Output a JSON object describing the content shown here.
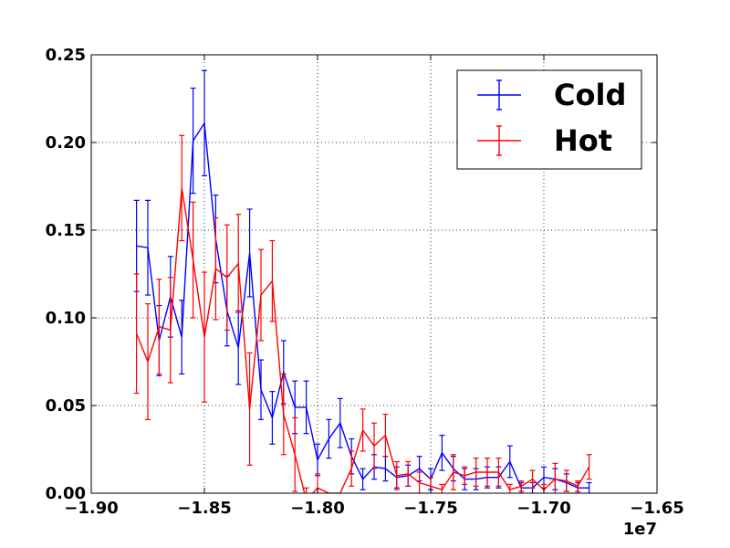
{
  "chart_data": {
    "type": "line",
    "title": "",
    "xlabel": "",
    "ylabel": "",
    "x_offset_label": "1e7",
    "xlim": [
      -1.9,
      -1.65
    ],
    "ylim": [
      0.0,
      0.25
    ],
    "x_ticks": [
      -1.9,
      -1.85,
      -1.8,
      -1.75,
      -1.7,
      -1.65
    ],
    "x_tick_labels": [
      "−1.90",
      "−1.85",
      "−1.80",
      "−1.75",
      "−1.70",
      "−1.65"
    ],
    "y_ticks": [
      0.0,
      0.05,
      0.1,
      0.15,
      0.2,
      0.25
    ],
    "y_tick_labels": [
      "0.00",
      "0.05",
      "0.10",
      "0.15",
      "0.20",
      "0.25"
    ],
    "grid": true,
    "legend_position": "top-right",
    "series": [
      {
        "name": "Cold",
        "color": "#0000ff",
        "x": [
          -1.88,
          -1.875,
          -1.87,
          -1.865,
          -1.86,
          -1.855,
          -1.85,
          -1.845,
          -1.84,
          -1.835,
          -1.83,
          -1.825,
          -1.82,
          -1.815,
          -1.81,
          -1.805,
          -1.8,
          -1.795,
          -1.79,
          -1.785,
          -1.78,
          -1.775,
          -1.77,
          -1.765,
          -1.76,
          -1.755,
          -1.75,
          -1.745,
          -1.74,
          -1.735,
          -1.73,
          -1.725,
          -1.72,
          -1.715,
          -1.71,
          -1.705,
          -1.7,
          -1.695,
          -1.69,
          -1.685,
          -1.68
        ],
        "y": [
          0.141,
          0.14,
          0.087,
          0.112,
          0.089,
          0.201,
          0.211,
          0.145,
          0.104,
          0.083,
          0.137,
          0.059,
          0.043,
          0.069,
          0.049,
          0.049,
          0.019,
          0.031,
          0.04,
          0.021,
          0.008,
          0.015,
          0.014,
          0.009,
          0.01,
          0.014,
          0.008,
          0.023,
          0.014,
          0.008,
          0.008,
          0.009,
          0.009,
          0.018,
          0.003,
          0.003,
          0.009,
          0.008,
          0.006,
          0.003,
          0.003
        ],
        "err": [
          0.026,
          0.027,
          0.02,
          0.023,
          0.021,
          0.03,
          0.03,
          0.025,
          0.02,
          0.021,
          0.025,
          0.017,
          0.015,
          0.018,
          0.015,
          0.015,
          0.009,
          0.011,
          0.014,
          0.01,
          0.006,
          0.007,
          0.007,
          0.006,
          0.006,
          0.007,
          0.006,
          0.01,
          0.007,
          0.006,
          0.006,
          0.006,
          0.006,
          0.009,
          0.003,
          0.003,
          0.006,
          0.006,
          0.005,
          0.003,
          0.003
        ]
      },
      {
        "name": "Hot",
        "color": "#ff0000",
        "x": [
          -1.88,
          -1.875,
          -1.87,
          -1.865,
          -1.86,
          -1.855,
          -1.85,
          -1.845,
          -1.84,
          -1.835,
          -1.83,
          -1.825,
          -1.82,
          -1.815,
          -1.81,
          -1.805,
          -1.8,
          -1.795,
          -1.79,
          -1.785,
          -1.78,
          -1.775,
          -1.77,
          -1.765,
          -1.76,
          -1.755,
          -1.75,
          -1.745,
          -1.74,
          -1.735,
          -1.73,
          -1.725,
          -1.72,
          -1.715,
          -1.71,
          -1.705,
          -1.7,
          -1.695,
          -1.69,
          -1.685,
          -1.68
        ],
        "y": [
          0.091,
          0.075,
          0.095,
          0.093,
          0.174,
          0.133,
          0.089,
          0.128,
          0.123,
          0.131,
          0.048,
          0.113,
          0.121,
          0.045,
          0.022,
          -0.004,
          0.003,
          0.0,
          0.0,
          0.014,
          0.036,
          0.027,
          0.033,
          0.01,
          0.011,
          0.006,
          0.004,
          0.002,
          0.012,
          0.01,
          0.012,
          0.012,
          0.012,
          0.002,
          0.004,
          0.008,
          0.002,
          0.008,
          0.007,
          0.004,
          0.015
        ],
        "err": [
          0.034,
          0.033,
          0.027,
          0.03,
          0.03,
          0.033,
          0.037,
          0.029,
          0.03,
          0.028,
          0.032,
          0.026,
          0.023,
          0.023,
          0.021,
          0.007,
          0.008,
          0.0,
          0.0,
          0.01,
          0.012,
          0.013,
          0.012,
          0.008,
          0.007,
          0.006,
          0.005,
          0.003,
          0.01,
          0.005,
          0.008,
          0.008,
          0.008,
          0.003,
          0.003,
          0.005,
          0.003,
          0.009,
          0.006,
          0.003,
          0.007
        ]
      }
    ]
  }
}
